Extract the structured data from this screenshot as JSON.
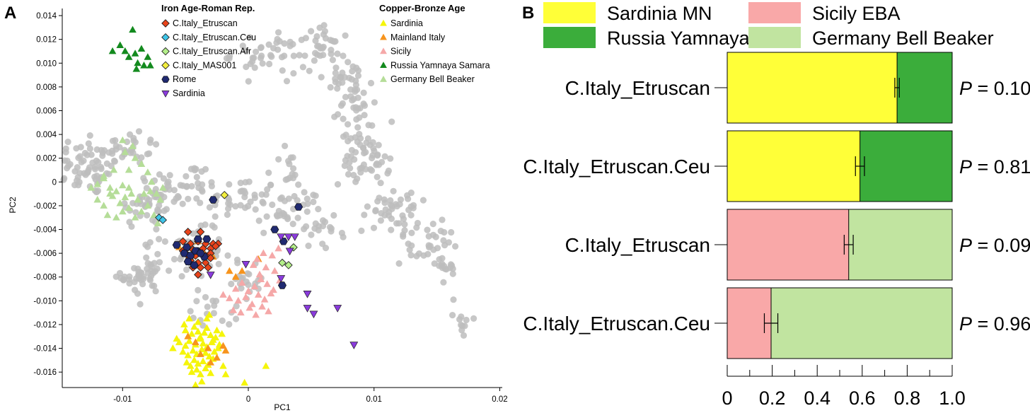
{
  "chart_data": [
    {
      "panel": "A",
      "type": "scatter",
      "xlabel": "PC1",
      "ylabel": "PC2",
      "xlim": [
        -0.0148,
        0.0202
      ],
      "ylim": [
        -0.0173,
        0.0146
      ],
      "xticks": [
        -0.01,
        0,
        0.01,
        0.02
      ],
      "xtick_labels": [
        "-0.01",
        "0",
        "0.01",
        "0.02"
      ],
      "yticks": [
        0.014,
        0.012,
        0.01,
        0.008,
        0.006,
        0.004,
        0.002,
        0,
        -0.002,
        -0.004,
        -0.006,
        -0.008,
        -0.01,
        -0.012,
        -0.014,
        -0.016
      ],
      "ytick_labels": [
        "0.014",
        "0.012",
        "0.010",
        "0.008",
        "0.006",
        "0.004",
        "0.002",
        "0",
        "-0.002",
        "-0.004",
        "-0.006",
        "-0.008",
        "-0.010",
        "-0.012",
        "-0.014",
        "-0.016"
      ],
      "background_color": "#bdbdbd",
      "background_clusters": [
        {
          "cx": -0.0125,
          "cy": 0.0012,
          "sx": 0.0015,
          "sy": 0.0012,
          "n": 70
        },
        {
          "cx": -0.0095,
          "cy": 0.003,
          "sx": 0.0012,
          "sy": 0.0008,
          "n": 30
        },
        {
          "cx": -0.008,
          "cy": -0.002,
          "sx": 0.0012,
          "sy": 0.001,
          "n": 40
        },
        {
          "cx": -0.005,
          "cy": -0.0002,
          "sx": 0.0015,
          "sy": 0.0009,
          "n": 40
        },
        {
          "cx": -0.0005,
          "cy": -0.0015,
          "sx": 0.0014,
          "sy": 0.001,
          "n": 40
        },
        {
          "cx": -0.0045,
          "cy": -0.006,
          "sx": 0.0012,
          "sy": 0.001,
          "n": 40
        },
        {
          "cx": -0.0085,
          "cy": -0.008,
          "sx": 0.0008,
          "sy": 0.0007,
          "n": 30
        },
        {
          "cx": -0.008,
          "cy": -0.0075,
          "sx": 0.0008,
          "sy": 0.0012,
          "n": 20
        },
        {
          "cx": 0.0,
          "cy": -0.008,
          "sx": 0.001,
          "sy": 0.0008,
          "n": 20
        },
        {
          "cx": -0.0025,
          "cy": -0.0105,
          "sx": 0.001,
          "sy": 0.0008,
          "n": 20
        },
        {
          "cx": 0.0035,
          "cy": -0.0025,
          "sx": 0.0014,
          "sy": 0.001,
          "n": 35
        },
        {
          "cx": 0.003,
          "cy": 0.001,
          "sx": 0.0008,
          "sy": 0.0008,
          "n": 15
        },
        {
          "cx": 0.001,
          "cy": 0.0108,
          "sx": 0.0012,
          "sy": 0.001,
          "n": 30
        },
        {
          "cx": 0.004,
          "cy": 0.0105,
          "sx": 0.001,
          "sy": 0.0008,
          "n": 20
        },
        {
          "cx": 0.0065,
          "cy": 0.0115,
          "sx": 0.0012,
          "sy": 0.0008,
          "n": 25
        },
        {
          "cx": 0.008,
          "cy": 0.0085,
          "sx": 0.001,
          "sy": 0.0008,
          "n": 25
        },
        {
          "cx": 0.0085,
          "cy": 0.0065,
          "sx": 0.0008,
          "sy": 0.001,
          "n": 25
        },
        {
          "cx": 0.009,
          "cy": 0.004,
          "sx": 0.0008,
          "sy": 0.0008,
          "n": 20
        },
        {
          "cx": 0.0092,
          "cy": 0.0015,
          "sx": 0.001,
          "sy": 0.0009,
          "n": 40
        },
        {
          "cx": 0.006,
          "cy": -0.004,
          "sx": 0.001,
          "sy": 0.0008,
          "n": 15
        },
        {
          "cx": 0.0115,
          "cy": -0.002,
          "sx": 0.001,
          "sy": 0.0008,
          "n": 20
        },
        {
          "cx": 0.0125,
          "cy": -0.003,
          "sx": 0.001,
          "sy": 0.001,
          "n": 30
        },
        {
          "cx": 0.0145,
          "cy": -0.0055,
          "sx": 0.0008,
          "sy": 0.0008,
          "n": 25
        },
        {
          "cx": 0.0155,
          "cy": -0.0075,
          "sx": 0.0006,
          "sy": 0.0008,
          "n": 15
        },
        {
          "cx": 0.0172,
          "cy": -0.012,
          "sx": 0.0004,
          "sy": 0.0007,
          "n": 10
        }
      ],
      "legend_groups": [
        {
          "title": "Iron Age-Roman Rep.",
          "entries": [
            {
              "name": "C.Italy_Etruscan",
              "marker": "diamond",
              "color": "#e8431a"
            },
            {
              "name": "C.Italy_Etruscan.Ceu",
              "marker": "diamond",
              "color": "#3fc5e8"
            },
            {
              "name": "C.Italy_Etruscan.Afr",
              "marker": "diamond",
              "color": "#b4ef8a"
            },
            {
              "name": "C.Italy_MAS001",
              "marker": "diamond",
              "color": "#f2ee3e"
            },
            {
              "name": "Rome",
              "marker": "hexagon",
              "color": "#202a70"
            },
            {
              "name": "Sardinia",
              "marker": "triangle-down",
              "color": "#8a3bdc"
            }
          ]
        },
        {
          "title": "Copper-Bronze Age",
          "entries": [
            {
              "name": "Sardinia",
              "marker": "triangle",
              "color": "#f5f50a"
            },
            {
              "name": "Mainland Italy",
              "marker": "triangle",
              "color": "#f7941d"
            },
            {
              "name": "Sicily",
              "marker": "triangle",
              "color": "#f5a8a8"
            },
            {
              "name": "Russia Yamnaya Samara",
              "marker": "triangle",
              "color": "#138a1e"
            },
            {
              "name": "Germany Bell Beaker",
              "marker": "triangle",
              "color": "#b5dd98"
            }
          ]
        }
      ],
      "series": [
        {
          "name": "Germany Bell Beaker",
          "marker": "triangle",
          "color": "#b5dd98",
          "x": [
            -0.0125,
            -0.012,
            -0.0115,
            -0.011,
            -0.011,
            -0.0105,
            -0.01,
            -0.0095,
            -0.012,
            -0.0115,
            -0.0108,
            -0.0102,
            -0.0098,
            -0.0093,
            -0.0088,
            -0.0083,
            -0.0078,
            -0.0073,
            -0.007,
            -0.0068,
            -0.0112,
            -0.0105,
            -0.01,
            -0.0095,
            -0.009,
            -0.0085,
            -0.008,
            -0.0075,
            -0.0072,
            -0.0095,
            -0.009,
            -0.0098,
            -0.0092,
            -0.01,
            -0.0085,
            -0.008,
            -0.0077,
            -0.0115,
            -0.0107
          ],
          "y": [
            -0.0005,
            -0.0002,
            0.0003,
            -0.0005,
            -0.001,
            -0.0008,
            -0.0003,
            -0.0005,
            -0.0015,
            -0.002,
            -0.0012,
            -0.0018,
            -0.0013,
            -0.001,
            -0.0015,
            -0.001,
            -0.0008,
            -0.001,
            -0.0015,
            -0.0005,
            -0.0028,
            -0.003,
            -0.0025,
            -0.0022,
            -0.003,
            -0.0025,
            -0.002,
            -0.0028,
            -0.0035,
            0.001,
            0.002,
            0.0025,
            0.003,
            0.0035,
            0.0015,
            0.0008,
            0.0,
            0.0005,
            0.001
          ]
        },
        {
          "name": "Sardinia (Copper-Bronze Age)",
          "marker": "triangle",
          "color": "#f5f50a",
          "x": [
            -0.005,
            -0.0048,
            -0.0045,
            -0.0043,
            -0.004,
            -0.0038,
            -0.0035,
            -0.0033,
            -0.003,
            -0.0028,
            -0.0025,
            -0.0055,
            -0.005,
            -0.0047,
            -0.0042,
            -0.0039,
            -0.0036,
            -0.0033,
            -0.0029,
            -0.0026,
            -0.0023,
            -0.0052,
            -0.0048,
            -0.0044,
            -0.0041,
            -0.0037,
            -0.0034,
            -0.0031,
            -0.0027,
            -0.0024,
            -0.0049,
            -0.0046,
            -0.0043,
            -0.004,
            -0.0036,
            -0.0032,
            -0.0028,
            -0.0045,
            -0.0041,
            -0.0038,
            -0.0034,
            -0.003,
            -0.006,
            -0.0057,
            -0.004,
            -0.0033,
            -0.0037,
            -0.002,
            -0.0018,
            -0.0042,
            -0.0021,
            0.0014,
            -0.0003,
            -0.0031,
            -0.0051,
            -0.0047
          ],
          "y": [
            -0.0125,
            -0.013,
            -0.0128,
            -0.0122,
            -0.0126,
            -0.0131,
            -0.0127,
            -0.0123,
            -0.0129,
            -0.0133,
            -0.0125,
            -0.0135,
            -0.0138,
            -0.0134,
            -0.0137,
            -0.0132,
            -0.0136,
            -0.0139,
            -0.0135,
            -0.0131,
            -0.0137,
            -0.0143,
            -0.0146,
            -0.0142,
            -0.0145,
            -0.0141,
            -0.0144,
            -0.0147,
            -0.0143,
            -0.014,
            -0.0152,
            -0.0155,
            -0.015,
            -0.0153,
            -0.0151,
            -0.0154,
            -0.0149,
            -0.016,
            -0.0158,
            -0.0162,
            -0.0157,
            -0.0161,
            -0.014,
            -0.0132,
            -0.0118,
            -0.0115,
            -0.0168,
            -0.0155,
            -0.0162,
            -0.0171,
            -0.0128,
            -0.0155,
            -0.0169,
            -0.0112,
            -0.012,
            -0.0115
          ]
        },
        {
          "name": "Mainland Italy",
          "marker": "triangle",
          "color": "#f7941d",
          "x": [
            -0.0055,
            -0.005,
            -0.0045,
            -0.004,
            -0.0035,
            -0.0028,
            -0.0015,
            -0.001,
            -0.0005,
            0.0008,
            -0.002,
            -0.0018,
            -0.0032,
            -0.0038,
            -0.0042,
            -0.0025,
            -0.003,
            -0.0048
          ],
          "y": [
            -0.0055,
            -0.0058,
            -0.0062,
            -0.005,
            -0.006,
            -0.0063,
            -0.0075,
            -0.008,
            -0.0075,
            -0.0065,
            -0.0138,
            -0.0142,
            -0.014,
            -0.0145,
            -0.0135,
            -0.0148,
            -0.0152,
            -0.013
          ]
        },
        {
          "name": "Sicily",
          "marker": "triangle",
          "color": "#f5a8a8",
          "x": [
            -0.001,
            -0.0005,
            0.0,
            0.0005,
            0.001,
            0.0015,
            0.002,
            0.0025,
            -0.0008,
            -0.0002,
            0.0003,
            0.0008,
            0.0013,
            0.0018,
            -0.0012,
            -0.0006,
            0.0001,
            0.0006,
            0.0011,
            0.0016,
            0.0021,
            0.0004,
            0.0009,
            0.0014,
            0.0019,
            0.0024,
            0.0007,
            0.0012,
            -0.0015,
            -0.002
          ],
          "y": [
            -0.009,
            -0.0085,
            -0.0092,
            -0.0088,
            -0.0082,
            -0.0086,
            -0.0091,
            -0.0083,
            -0.01,
            -0.0097,
            -0.0103,
            -0.0095,
            -0.0099,
            -0.0094,
            -0.0108,
            -0.011,
            -0.0106,
            -0.0112,
            -0.0105,
            -0.0109,
            -0.0075,
            -0.007,
            -0.0078,
            -0.0072,
            -0.0062,
            -0.0056,
            -0.0065,
            -0.006,
            -0.0098,
            -0.0095
          ]
        },
        {
          "name": "Russia Yamnaya Samara",
          "marker": "triangle",
          "color": "#138a1e",
          "x": [
            -0.0092,
            -0.0085,
            -0.009,
            -0.0095,
            -0.008,
            -0.0088,
            -0.0083,
            -0.0089,
            -0.0078,
            -0.0102,
            -0.0108,
            -0.0098
          ],
          "y": [
            0.0128,
            0.0112,
            0.0108,
            0.0105,
            0.0105,
            0.01,
            0.0098,
            0.0095,
            0.0098,
            0.0115,
            0.011,
            0.011
          ]
        },
        {
          "name": "C.Italy_Etruscan",
          "marker": "diamond",
          "color": "#e8431a",
          "x": [
            -0.0048,
            -0.0038,
            -0.0052,
            -0.0046,
            -0.004,
            -0.0034,
            -0.0028,
            -0.0024,
            -0.005,
            -0.0044,
            -0.0036,
            -0.003,
            -0.0026,
            -0.0048,
            -0.0042,
            -0.0034,
            -0.003,
            -0.004,
            -0.0034,
            -0.0044,
            -0.0038,
            -0.0032,
            -0.0052,
            -0.004,
            -0.003,
            -0.0046
          ],
          "y": [
            -0.0042,
            -0.0042,
            -0.005,
            -0.0052,
            -0.005,
            -0.0052,
            -0.0052,
            -0.0052,
            -0.0057,
            -0.0057,
            -0.0056,
            -0.0056,
            -0.0054,
            -0.0062,
            -0.0062,
            -0.0062,
            -0.006,
            -0.0068,
            -0.0068,
            -0.0072,
            -0.0072,
            -0.0072,
            -0.0058,
            -0.0078,
            -0.0064,
            -0.0066
          ]
        },
        {
          "name": "C.Italy_Etruscan.Ceu",
          "marker": "diamond",
          "color": "#3fc5e8",
          "x": [
            -0.0071,
            -0.0068
          ],
          "y": [
            -0.003,
            -0.0032
          ]
        },
        {
          "name": "C.Italy_Etruscan.Afr",
          "marker": "diamond",
          "color": "#b4ef8a",
          "x": [
            0.0036,
            0.0027,
            0.0032
          ],
          "y": [
            -0.0055,
            -0.0068,
            -0.007
          ]
        },
        {
          "name": "C.Italy_MAS001",
          "marker": "diamond",
          "color": "#f2ee3e",
          "x": [
            -0.0019
          ],
          "y": [
            -0.0011
          ]
        },
        {
          "name": "Rome",
          "marker": "hexagon",
          "color": "#202a70",
          "x": [
            -0.0028,
            -0.0057,
            -0.0049,
            -0.004,
            -0.0033,
            -0.0051,
            -0.0046,
            -0.0041,
            -0.0035,
            -0.0048,
            -0.0043,
            0.0021,
            0.004,
            0.0028,
            0.0027,
            -0.0042,
            -0.0038
          ],
          "y": [
            -0.0015,
            -0.0053,
            -0.0055,
            -0.0048,
            -0.0048,
            -0.006,
            -0.0062,
            -0.0058,
            -0.0063,
            -0.0067,
            -0.007,
            -0.004,
            -0.0021,
            -0.005,
            -0.0087,
            -0.0058,
            -0.006
          ]
        },
        {
          "name": "Sardinia (Iron Age-Roman Rep.)",
          "marker": "triangle-down",
          "color": "#8a3bdc",
          "x": [
            -0.003,
            0.0026,
            0.0032,
            0.0037,
            0.0033,
            -0.0002,
            0.0026,
            0.0047,
            0.0047,
            0.0052,
            0.0071,
            0.0084
          ],
          "y": [
            -0.0078,
            -0.0046,
            -0.0046,
            -0.0046,
            -0.0058,
            -0.0069,
            -0.0081,
            -0.0094,
            -0.0106,
            -0.0111,
            -0.0106,
            -0.0137
          ]
        }
      ]
    },
    {
      "panel": "B",
      "type": "bar",
      "orientation": "horizontal",
      "stacked": true,
      "categories": [
        "C.Italy_Etruscan",
        "C.Italy_Etruscan.Ceu",
        "C.Italy_Etruscan",
        "C.Italy_Etruscan.Ceu"
      ],
      "p_labels": [
        "0.10",
        "0.81",
        "0.09",
        "0.96"
      ],
      "p_prefix": "P",
      "p_sep": " = ",
      "legend": [
        {
          "name": "Sardinia MN",
          "color": "#ffff38"
        },
        {
          "name": "Sicily EBA",
          "color": "#f9a8a8"
        },
        {
          "name": "Russia Yamnaya",
          "color": "#3bad3b"
        },
        {
          "name": "Germany Bell Beaker",
          "color": "#c1e4a0"
        }
      ],
      "bars": [
        {
          "segments": [
            {
              "source": "Sardinia MN",
              "value": 0.755,
              "color": "#ffff38"
            },
            {
              "source": "Russia Yamnaya",
              "value": 0.245,
              "color": "#3bad3b"
            }
          ],
          "error": [
            0.745,
            0.765
          ]
        },
        {
          "segments": [
            {
              "source": "Sardinia MN",
              "value": 0.59,
              "color": "#ffff38"
            },
            {
              "source": "Russia Yamnaya",
              "value": 0.41,
              "color": "#3bad3b"
            }
          ],
          "error": [
            0.57,
            0.61
          ]
        },
        {
          "segments": [
            {
              "source": "Sicily EBA",
              "value": 0.54,
              "color": "#f9a8a8"
            },
            {
              "source": "Germany Bell Beaker",
              "value": 0.46,
              "color": "#c1e4a0"
            }
          ],
          "error": [
            0.52,
            0.56
          ]
        },
        {
          "segments": [
            {
              "source": "Sicily EBA",
              "value": 0.195,
              "color": "#f9a8a8"
            },
            {
              "source": "Germany Bell Beaker",
              "value": 0.805,
              "color": "#c1e4a0"
            }
          ],
          "error": [
            0.165,
            0.225
          ]
        }
      ],
      "xlim": [
        0,
        1
      ],
      "xticks": [
        0,
        0.2,
        0.4,
        0.6,
        0.8,
        1.0
      ],
      "xtick_labels": [
        "0",
        "0.2",
        "0.4",
        "0.6",
        "0.8",
        "1.0"
      ]
    }
  ],
  "panel_labels": [
    "A",
    "B"
  ]
}
